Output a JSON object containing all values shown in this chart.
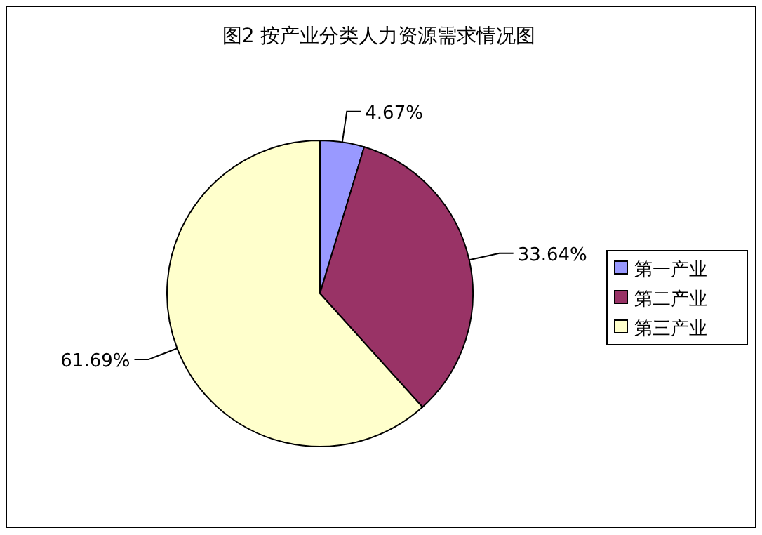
{
  "chart_data": {
    "type": "pie",
    "title": "图2 按产业分类人力资源需求情况图",
    "categories": [
      "第一产业",
      "第二产业",
      "第三产业"
    ],
    "values": [
      4.67,
      33.64,
      61.69
    ],
    "colors": [
      "#9999ff",
      "#993366",
      "#ffffcc"
    ],
    "value_labels": [
      "4.67%",
      "33.64%",
      "61.69%"
    ],
    "legend": "right"
  }
}
